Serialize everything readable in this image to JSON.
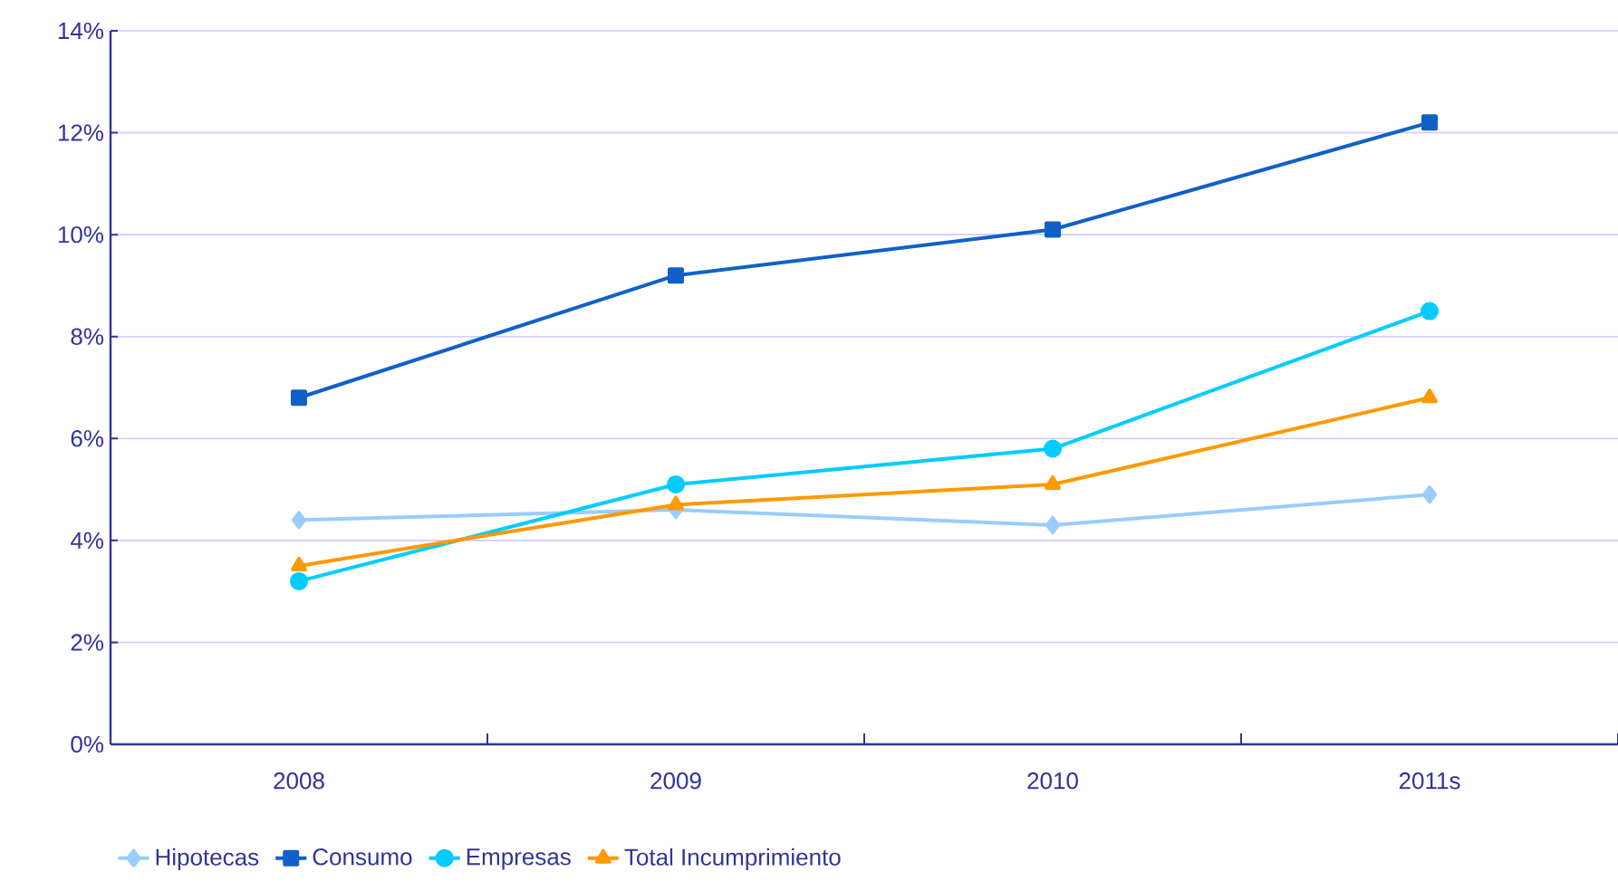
{
  "chart_data": {
    "type": "line",
    "categories": [
      "2008",
      "2009",
      "2010",
      "2011s"
    ],
    "ylim": [
      0,
      14
    ],
    "yticks": [
      {
        "value": 0,
        "label": "0%"
      },
      {
        "value": 2,
        "label": "2%"
      },
      {
        "value": 4,
        "label": "4%"
      },
      {
        "value": 6,
        "label": "6%"
      },
      {
        "value": 8,
        "label": "8%"
      },
      {
        "value": 10,
        "label": "10%"
      },
      {
        "value": 12,
        "label": "12%"
      },
      {
        "value": 14,
        "label": "14%"
      }
    ],
    "grid": "y",
    "legend": "bottom",
    "line_style": "solid",
    "series": [
      {
        "name": "Hipotecas",
        "color": "#99ccff",
        "marker": "diamond",
        "values": [
          4.4,
          4.6,
          4.3,
          4.9
        ]
      },
      {
        "name": "Consumo",
        "color": "#1060c8",
        "marker": "square",
        "values": [
          6.8,
          9.2,
          10.1,
          12.2
        ]
      },
      {
        "name": "Empresas",
        "color": "#00ccff",
        "marker": "circle",
        "values": [
          3.2,
          5.1,
          5.8,
          8.5
        ]
      },
      {
        "name": "Total Incumprimiento",
        "color": "#ff9900",
        "marker": "triangle",
        "values": [
          3.5,
          4.7,
          5.1,
          6.8
        ]
      }
    ]
  }
}
